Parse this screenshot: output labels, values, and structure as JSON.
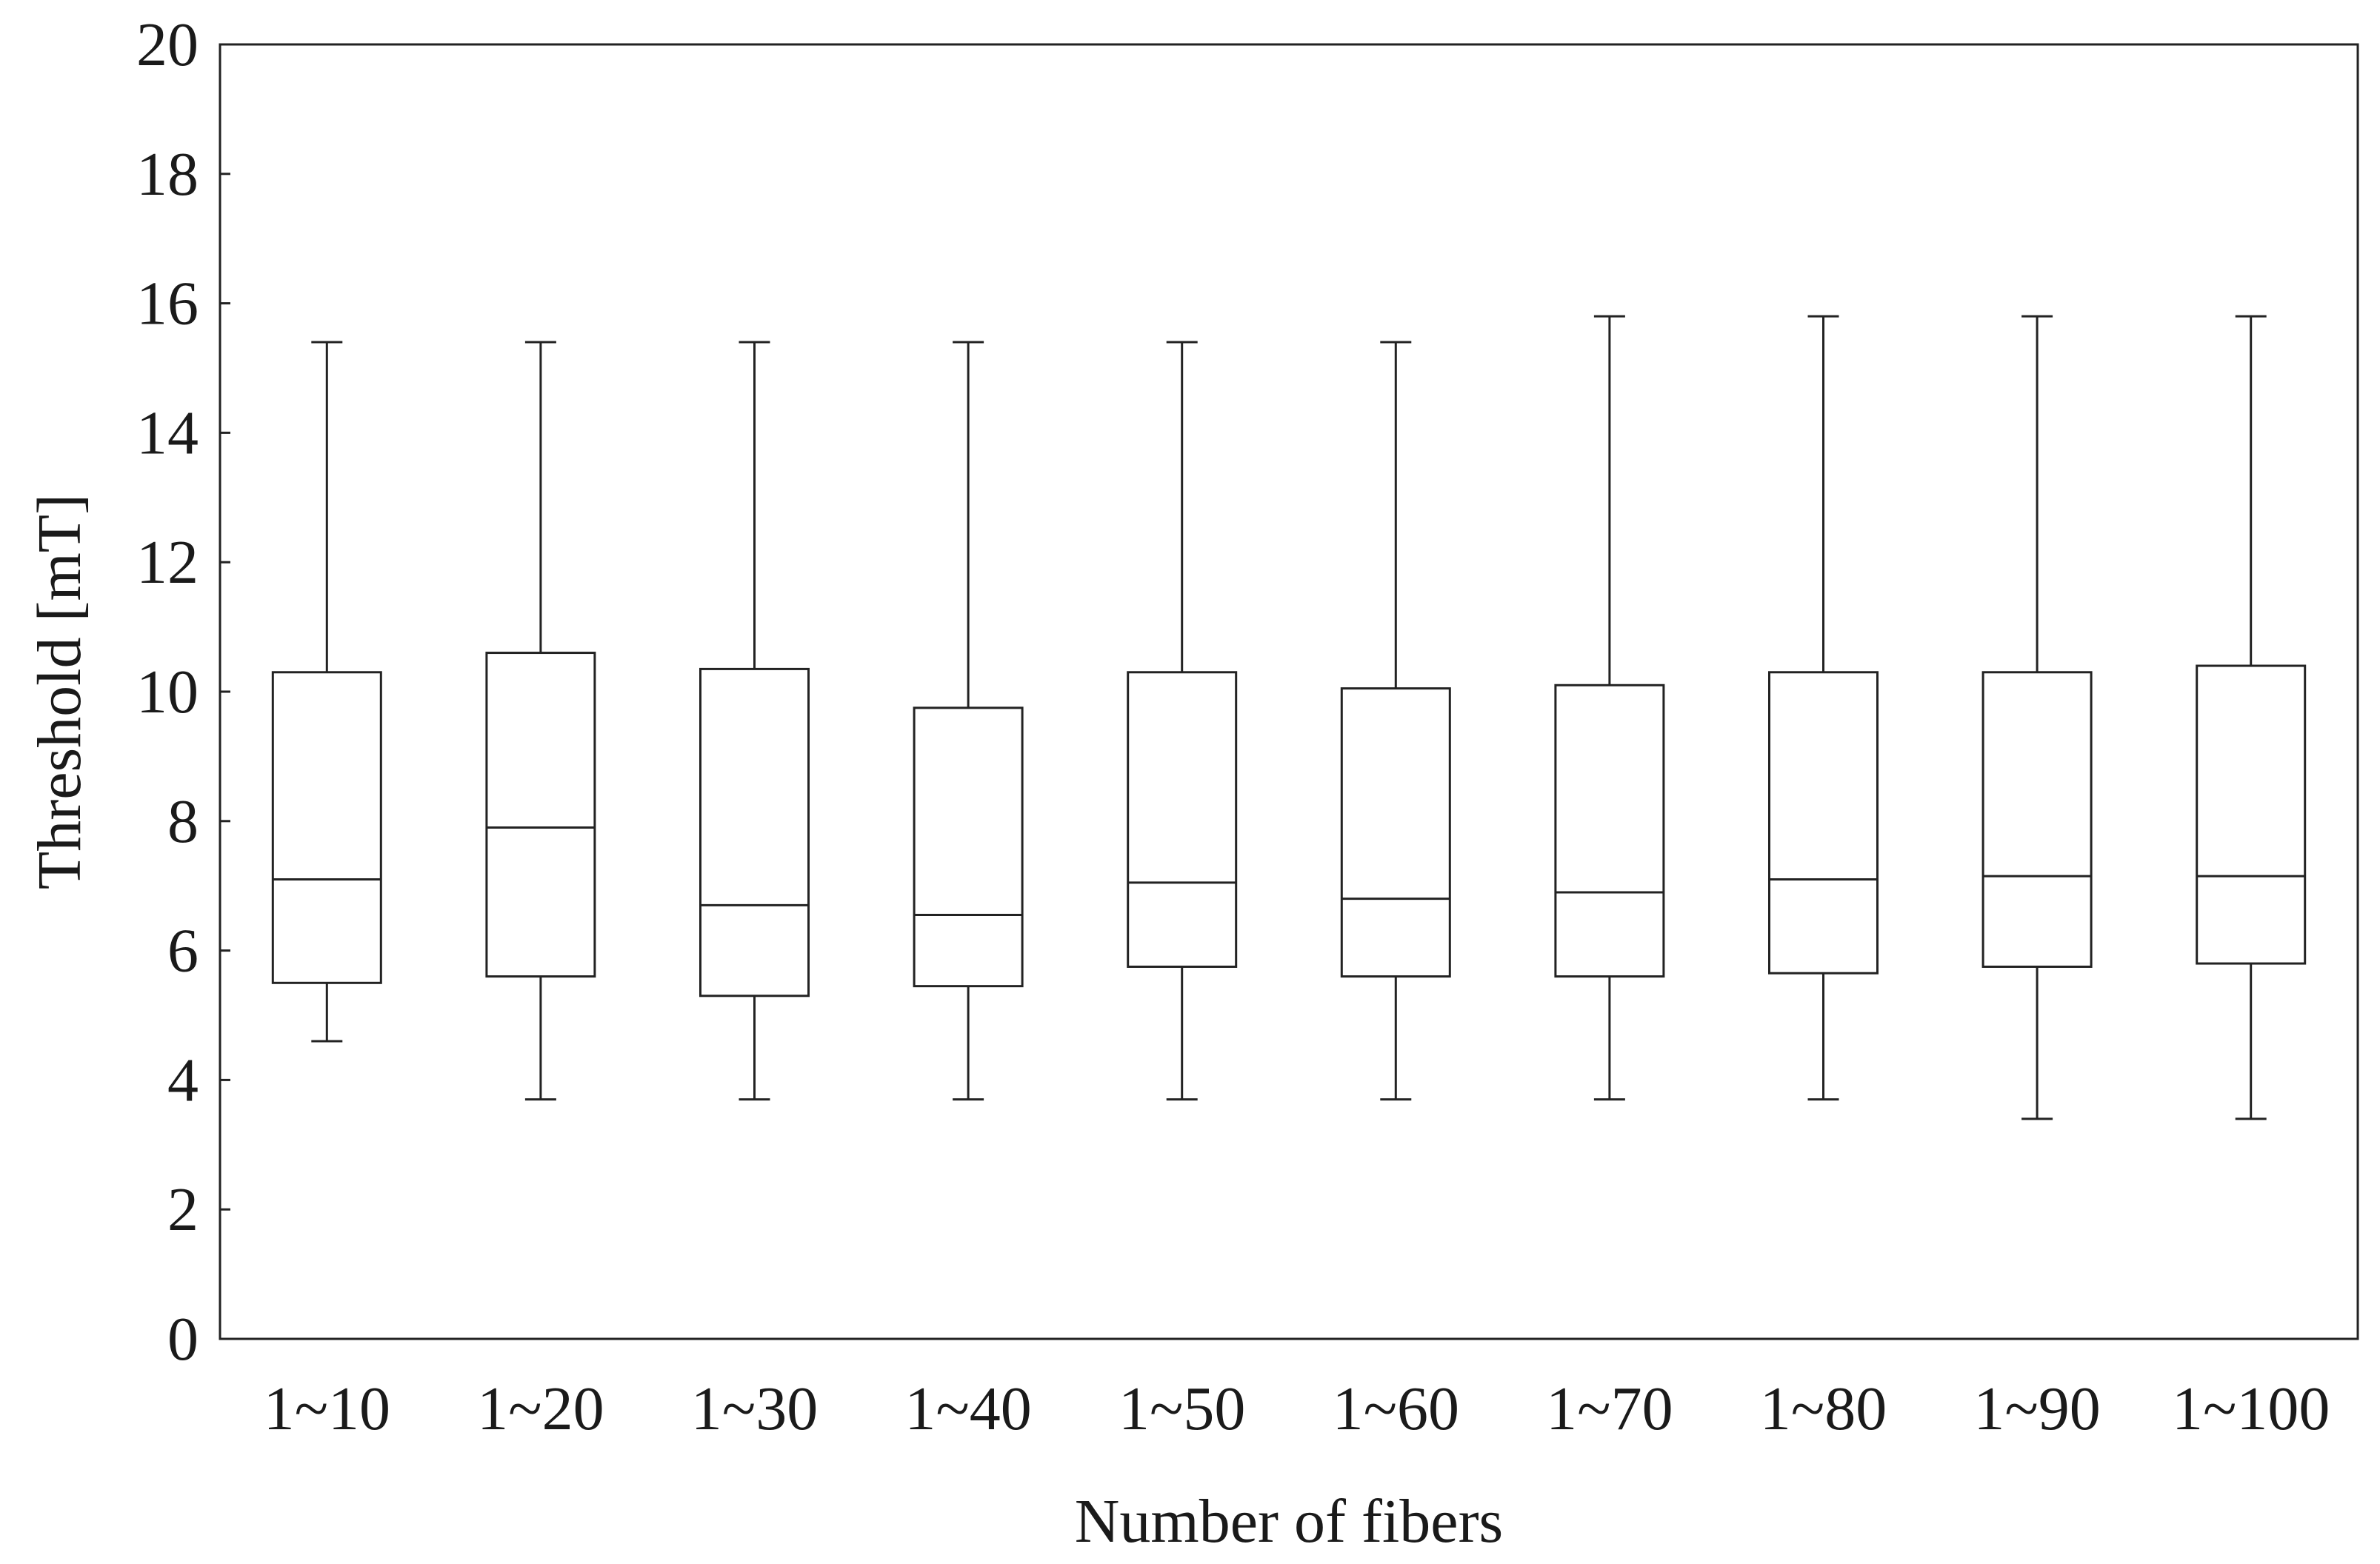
{
  "chart_data": {
    "type": "boxplot",
    "title": "",
    "xlabel": "Number of fibers",
    "ylabel": "Threshold [mT]",
    "ylim": [
      0,
      20
    ],
    "yticks": [
      "0",
      "2",
      "4",
      "6",
      "8",
      "10",
      "12",
      "14",
      "16",
      "18",
      "20"
    ],
    "grid": false,
    "legend": false,
    "categories": [
      "1~10",
      "1~20",
      "1~30",
      "1~40",
      "1~50",
      "1~60",
      "1~70",
      "1~80",
      "1~90",
      "1~100"
    ],
    "series": [
      {
        "boxes": [
          {
            "whisker_low": 4.6,
            "q1": 5.5,
            "median": 7.1,
            "q3": 10.3,
            "whisker_high": 15.4
          },
          {
            "whisker_low": 3.7,
            "q1": 5.6,
            "median": 7.9,
            "q3": 10.6,
            "whisker_high": 15.4
          },
          {
            "whisker_low": 3.7,
            "q1": 5.3,
            "median": 6.7,
            "q3": 10.35,
            "whisker_high": 15.4
          },
          {
            "whisker_low": 3.7,
            "q1": 5.45,
            "median": 6.55,
            "q3": 9.75,
            "whisker_high": 15.4
          },
          {
            "whisker_low": 3.7,
            "q1": 5.75,
            "median": 7.05,
            "q3": 10.3,
            "whisker_high": 15.4
          },
          {
            "whisker_low": 3.7,
            "q1": 5.6,
            "median": 6.8,
            "q3": 10.05,
            "whisker_high": 15.4
          },
          {
            "whisker_low": 3.7,
            "q1": 5.6,
            "median": 6.9,
            "q3": 10.1,
            "whisker_high": 15.8
          },
          {
            "whisker_low": 3.7,
            "q1": 5.65,
            "median": 7.1,
            "q3": 10.3,
            "whisker_high": 15.8
          },
          {
            "whisker_low": 3.4,
            "q1": 5.75,
            "median": 7.15,
            "q3": 10.3,
            "whisker_high": 15.8
          },
          {
            "whisker_low": 3.4,
            "q1": 5.8,
            "median": 7.15,
            "q3": 10.4,
            "whisker_high": 15.8
          }
        ]
      }
    ]
  }
}
